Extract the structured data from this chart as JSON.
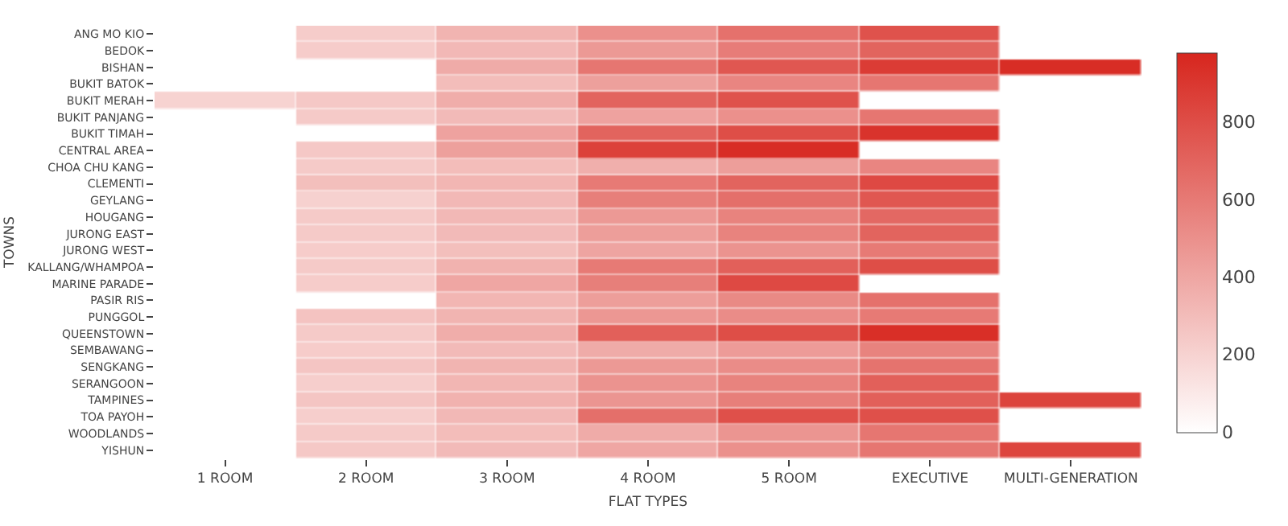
{
  "chart_data": {
    "type": "heatmap",
    "xlabel": "FLAT TYPES",
    "ylabel": "TOWNS",
    "categories": [
      "1 ROOM",
      "2 ROOM",
      "3 ROOM",
      "4 ROOM",
      "5 ROOM",
      "EXECUTIVE",
      "MULTI-GENERATION"
    ],
    "y_categories": [
      "ANG MO KIO",
      "BEDOK",
      "BISHAN",
      "BUKIT BATOK",
      "BUKIT MERAH",
      "BUKIT PANJANG",
      "BUKIT TIMAH",
      "CENTRAL AREA",
      "CHOA CHU KANG",
      "CLEMENTI",
      "GEYLANG",
      "HOUGANG",
      "JURONG EAST",
      "JURONG WEST",
      "KALLANG/WHAMPOA",
      "MARINE PARADE",
      "PASIR RIS",
      "PUNGGOL",
      "QUEENSTOWN",
      "SEMBAWANG",
      "SENGKANG",
      "SERANGOON",
      "TAMPINES",
      "TOA PAYOH",
      "WOODLANDS",
      "YISHUN"
    ],
    "cells": [
      [
        null,
        230,
        340,
        500,
        640,
        780,
        null
      ],
      [
        null,
        230,
        320,
        460,
        590,
        700,
        null
      ],
      [
        null,
        null,
        380,
        620,
        760,
        880,
        950
      ],
      [
        null,
        null,
        300,
        430,
        550,
        620,
        null
      ],
      [
        200,
        250,
        370,
        700,
        780,
        null,
        null
      ],
      [
        null,
        240,
        310,
        420,
        500,
        620,
        null
      ],
      [
        null,
        null,
        420,
        700,
        800,
        920,
        null
      ],
      [
        null,
        250,
        430,
        860,
        950,
        null,
        null
      ],
      [
        null,
        240,
        300,
        360,
        440,
        550,
        null
      ],
      [
        null,
        290,
        330,
        600,
        700,
        820,
        null
      ],
      [
        null,
        210,
        320,
        580,
        650,
        760,
        null
      ],
      [
        null,
        240,
        320,
        460,
        560,
        680,
        null
      ],
      [
        null,
        240,
        310,
        440,
        560,
        700,
        null
      ],
      [
        null,
        230,
        290,
        410,
        490,
        600,
        null
      ],
      [
        null,
        240,
        350,
        600,
        720,
        800,
        null
      ],
      [
        null,
        230,
        400,
        580,
        820,
        null,
        null
      ],
      [
        null,
        null,
        330,
        440,
        530,
        640,
        null
      ],
      [
        null,
        270,
        340,
        470,
        520,
        600,
        null
      ],
      [
        null,
        240,
        370,
        720,
        800,
        940,
        null
      ],
      [
        null,
        230,
        310,
        380,
        450,
        560,
        null
      ],
      [
        null,
        260,
        340,
        460,
        520,
        630,
        null
      ],
      [
        null,
        220,
        330,
        490,
        560,
        720,
        null
      ],
      [
        null,
        260,
        350,
        480,
        580,
        720,
        850
      ],
      [
        null,
        220,
        320,
        650,
        790,
        790,
        null
      ],
      [
        null,
        240,
        300,
        380,
        480,
        620,
        null
      ],
      [
        null,
        250,
        310,
        400,
        500,
        620,
        840
      ]
    ],
    "clim": [
      0,
      980
    ],
    "cticks": [
      0,
      200,
      400,
      600,
      800
    ]
  }
}
